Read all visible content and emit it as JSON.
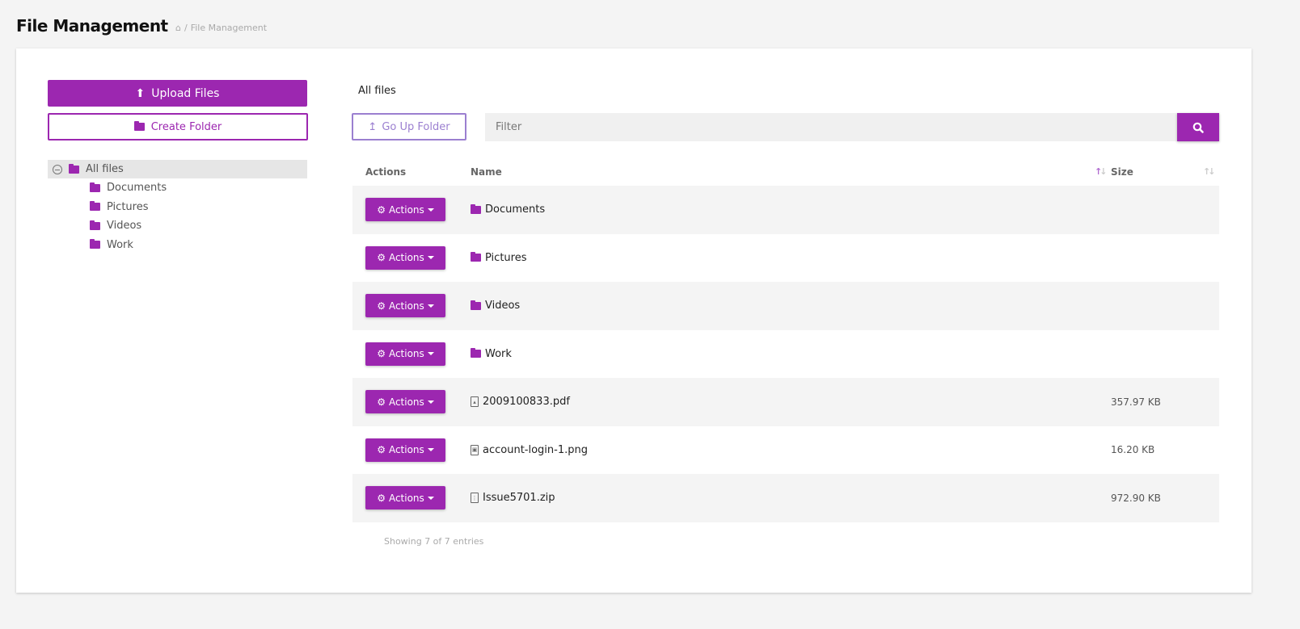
{
  "header": {
    "title": "File Management",
    "breadcrumb": [
      "File Management"
    ],
    "home_icon": "home-icon"
  },
  "accent": "#9c27b0",
  "sidebar": {
    "upload_label": "Upload Files",
    "create_folder_label": "Create Folder",
    "tree": {
      "root": "All files",
      "children": [
        "Documents",
        "Pictures",
        "Videos",
        "Work"
      ]
    }
  },
  "main": {
    "current_path": "All files",
    "go_up_label": "Go Up Folder",
    "filter_placeholder": "Filter",
    "columns": {
      "actions": "Actions",
      "name": "Name",
      "size": "Size"
    },
    "actions_label": "Actions",
    "rows": [
      {
        "type": "folder",
        "name": "Documents",
        "size": ""
      },
      {
        "type": "folder",
        "name": "Pictures",
        "size": ""
      },
      {
        "type": "folder",
        "name": "Videos",
        "size": ""
      },
      {
        "type": "folder",
        "name": "Work",
        "size": ""
      },
      {
        "type": "pdf",
        "name": "2009100833.pdf",
        "size": "357.97 KB"
      },
      {
        "type": "image",
        "name": "account-login-1.png",
        "size": "16.20 KB"
      },
      {
        "type": "zip",
        "name": "Issue5701.zip",
        "size": "972.90 KB"
      }
    ],
    "footer": "Showing 7 of 7 entries"
  }
}
